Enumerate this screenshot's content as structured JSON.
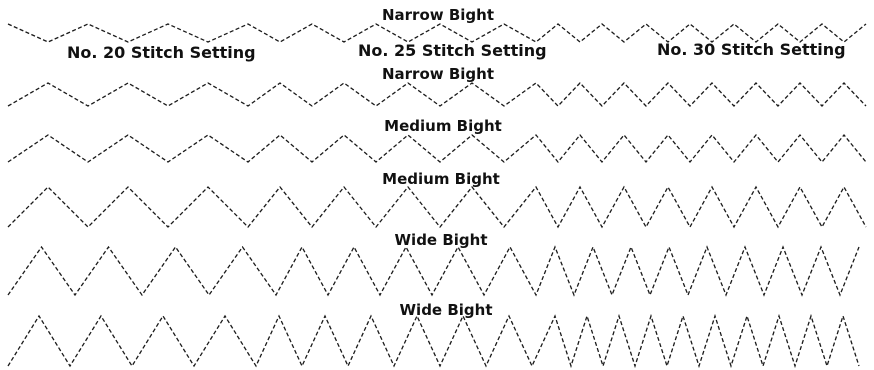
{
  "settings": [
    {
      "label": "No. 20 Stitch Setting"
    },
    {
      "label": "No. 25 Stitch Setting"
    },
    {
      "label": "No. 30 Stitch Setting"
    }
  ],
  "rows": [
    {
      "label": "Narrow Bight"
    },
    {
      "label": "Narrow Bight"
    },
    {
      "label": "Medium Bight"
    },
    {
      "label": "Medium Bight"
    },
    {
      "label": "Wide Bight"
    },
    {
      "label": "Wide Bight"
    }
  ],
  "colors": {
    "stitch": "#1a1a1a",
    "text": "#111111",
    "background": "#ffffff"
  }
}
